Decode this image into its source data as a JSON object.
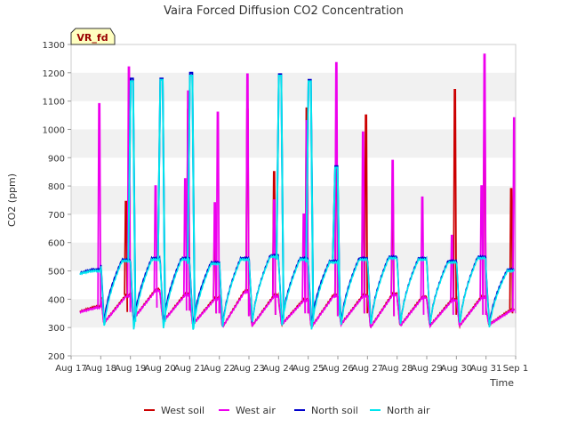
{
  "chart_data": {
    "type": "line",
    "title": "Vaira Forced Diffusion CO2 Concentration",
    "xlabel": "Time",
    "ylabel": "CO2 (ppm)",
    "ylim": [
      200,
      1300
    ],
    "yticks": [
      200,
      300,
      400,
      500,
      600,
      700,
      800,
      900,
      1000,
      1100,
      1200,
      1300
    ],
    "xticks": [
      "Aug 17",
      "Aug 18",
      "Aug 19",
      "Aug 20",
      "Aug 21",
      "Aug 22",
      "Aug 23",
      "Aug 24",
      "Aug 25",
      "Aug 26",
      "Aug 27",
      "Aug 28",
      "Aug 29",
      "Aug 30",
      "Aug 31",
      "Sep 1"
    ],
    "xlim": [
      "Aug 17",
      "Sep 1"
    ],
    "grid": "horizontal bands",
    "legend_position": "bottom",
    "badge": "VR_fd",
    "days": [
      "Aug 17",
      "Aug 18",
      "Aug 19",
      "Aug 20",
      "Aug 21",
      "Aug 22",
      "Aug 23",
      "Aug 24",
      "Aug 25",
      "Aug 26",
      "Aug 27",
      "Aug 28",
      "Aug 29",
      "Aug 30",
      "Aug 31"
    ],
    "series": [
      {
        "name": "West soil",
        "color": "#cc0000",
        "daily_min": [
          350,
          315,
          330,
          320,
          310,
          300,
          305,
          310,
          300,
          310,
          300,
          305,
          305,
          305,
          310
        ],
        "daily_max": [
          375,
          415,
          435,
          420,
          405,
          430,
          415,
          400,
          415,
          415,
          420,
          410,
          400,
          410,
          365
        ],
        "spikes": [
          [
            1,
            745
          ],
          [
            3,
            1070
          ],
          [
            4,
            645
          ],
          [
            5,
            1070
          ],
          [
            6,
            850
          ],
          [
            7,
            1075
          ],
          [
            8,
            1030
          ],
          [
            9,
            770
          ],
          [
            9,
            1050
          ],
          [
            10,
            735
          ],
          [
            12,
            1140
          ],
          [
            13,
            1075
          ],
          [
            14,
            790
          ]
        ]
      },
      {
        "name": "West air",
        "color": "#ee00ee",
        "daily_min": [
          350,
          315,
          330,
          320,
          310,
          300,
          305,
          310,
          300,
          310,
          300,
          305,
          305,
          305,
          310
        ],
        "daily_max": [
          370,
          410,
          430,
          415,
          400,
          425,
          410,
          395,
          410,
          410,
          415,
          405,
          395,
          405,
          360
        ],
        "spikes": [
          [
            0,
            1090
          ],
          [
            1,
            1220
          ],
          [
            2,
            800
          ],
          [
            3,
            1135
          ],
          [
            3,
            825
          ],
          [
            4,
            1060
          ],
          [
            4,
            740
          ],
          [
            5,
            1195
          ],
          [
            6,
            750
          ],
          [
            7,
            1030
          ],
          [
            7,
            700
          ],
          [
            8,
            1235
          ],
          [
            9,
            990
          ],
          [
            10,
            890
          ],
          [
            11,
            760
          ],
          [
            12,
            625
          ],
          [
            13,
            1265
          ],
          [
            13,
            800
          ],
          [
            14,
            1040
          ]
        ]
      },
      {
        "name": "North soil",
        "color": "#0000cc",
        "daily_min": [
          480,
          310,
          300,
          300,
          295,
          295,
          305,
          300,
          300,
          305,
          300,
          300,
          300,
          300,
          300
        ],
        "daily_max": [
          505,
          540,
          545,
          545,
          530,
          545,
          555,
          545,
          535,
          545,
          550,
          545,
          535,
          550,
          505
        ],
        "spikes": [
          [
            2,
            1180
          ],
          [
            3,
            1180
          ],
          [
            4,
            1200
          ],
          [
            7,
            1195
          ],
          [
            8,
            1175
          ],
          [
            9,
            870
          ]
        ]
      },
      {
        "name": "North air",
        "color": "#00e5ee",
        "daily_min": [
          480,
          290,
          280,
          280,
          275,
          290,
          305,
          290,
          280,
          295,
          295,
          300,
          300,
          300,
          290
        ],
        "daily_max": [
          500,
          535,
          540,
          540,
          525,
          540,
          550,
          540,
          530,
          540,
          545,
          540,
          530,
          545,
          500
        ],
        "spikes": [
          [
            2,
            1170
          ],
          [
            3,
            1175
          ],
          [
            4,
            1190
          ],
          [
            7,
            1190
          ],
          [
            8,
            1170
          ],
          [
            9,
            865
          ]
        ]
      }
    ]
  }
}
